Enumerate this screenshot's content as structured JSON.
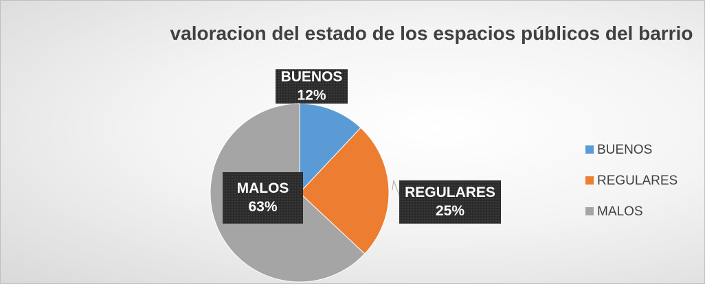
{
  "chart_data": {
    "type": "pie",
    "title": "valoracion del estado de los espacios públicos del barrio",
    "categories": [
      "BUENOS",
      "REGULARES",
      "MALOS"
    ],
    "values": [
      12,
      25,
      63
    ],
    "value_labels": [
      "12%",
      "25%",
      "63%"
    ],
    "colors": [
      "#5b9bd5",
      "#ed7d31",
      "#a5a5a5"
    ],
    "legend": "right"
  }
}
